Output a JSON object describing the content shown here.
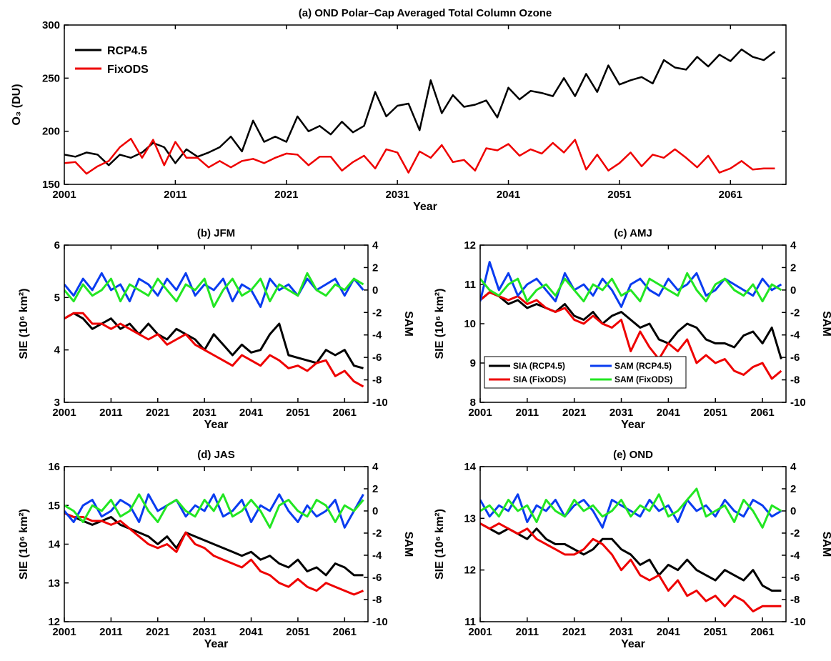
{
  "chart_data": [
    {
      "type": "line",
      "title": "(a) OND Polar–Cap Averaged Total Column Ozone",
      "xlabel": "Year",
      "ylabel": "O₃ (DU)",
      "legend": "upper left",
      "x": [
        2001,
        2002,
        2003,
        2004,
        2005,
        2006,
        2007,
        2008,
        2009,
        2010,
        2011,
        2012,
        2013,
        2014,
        2015,
        2016,
        2017,
        2018,
        2019,
        2020,
        2021,
        2022,
        2023,
        2024,
        2025,
        2026,
        2027,
        2028,
        2029,
        2030,
        2031,
        2032,
        2033,
        2034,
        2035,
        2036,
        2037,
        2038,
        2039,
        2040,
        2041,
        2042,
        2043,
        2044,
        2045,
        2046,
        2047,
        2048,
        2049,
        2050,
        2051,
        2052,
        2053,
        2054,
        2055,
        2056,
        2057,
        2058,
        2059,
        2060,
        2061,
        2062,
        2063,
        2064,
        2065
      ],
      "xlim": [
        2001,
        2066
      ],
      "xticks": [
        2001,
        2011,
        2021,
        2031,
        2041,
        2051,
        2061
      ],
      "ylim": [
        150,
        300
      ],
      "yticks": [
        150,
        200,
        250,
        300
      ],
      "series": [
        {
          "name": "RCP4.5",
          "color": "#000000",
          "values": [
            178,
            176,
            180,
            178,
            168,
            178,
            175,
            180,
            189,
            185,
            170,
            183,
            176,
            180,
            185,
            195,
            181,
            210,
            190,
            195,
            190,
            214,
            200,
            205,
            197,
            209,
            199,
            205,
            237,
            214,
            224,
            226,
            201,
            248,
            217,
            234,
            223,
            225,
            229,
            213,
            241,
            230,
            238,
            236,
            233,
            250,
            233,
            254,
            237,
            262,
            244,
            248,
            251,
            245,
            267,
            260,
            258,
            270,
            261,
            272,
            266,
            277,
            270,
            267,
            275
          ]
        },
        {
          "name": "FixODS",
          "color": "#ee0000",
          "values": [
            170,
            171,
            160,
            167,
            172,
            185,
            193,
            175,
            192,
            168,
            190,
            175,
            175,
            166,
            172,
            166,
            172,
            174,
            170,
            175,
            179,
            178,
            168,
            176,
            176,
            163,
            171,
            177,
            165,
            183,
            180,
            161,
            181,
            175,
            187,
            171,
            173,
            163,
            184,
            182,
            188,
            177,
            183,
            179,
            189,
            180,
            192,
            164,
            178,
            163,
            170,
            180,
            167,
            178,
            175,
            183,
            175,
            166,
            177,
            161,
            165,
            172,
            164,
            165,
            165
          ]
        }
      ]
    },
    {
      "type": "line",
      "title": "(b) JFM",
      "xlabel": "Year",
      "ylabel": "SIE (10⁶ km²)",
      "y2label": "SAM",
      "x": [
        2001,
        2003,
        2005,
        2007,
        2009,
        2011,
        2013,
        2015,
        2017,
        2019,
        2021,
        2023,
        2025,
        2027,
        2029,
        2031,
        2033,
        2035,
        2037,
        2039,
        2041,
        2043,
        2045,
        2047,
        2049,
        2051,
        2053,
        2055,
        2057,
        2059,
        2061,
        2063,
        2065
      ],
      "xlim": [
        2001,
        2066
      ],
      "xticks": [
        2001,
        2011,
        2021,
        2031,
        2041,
        2051,
        2061
      ],
      "ylim": [
        3,
        6
      ],
      "yticks": [
        3,
        4,
        5,
        6
      ],
      "y2lim": [
        -10,
        4
      ],
      "y2ticks": [
        -10,
        -8,
        -6,
        -4,
        -2,
        0,
        2,
        4
      ],
      "series": [
        {
          "color": "#000000",
          "values": [
            4.6,
            4.7,
            4.6,
            4.4,
            4.5,
            4.6,
            4.4,
            4.5,
            4.3,
            4.5,
            4.3,
            4.2,
            4.4,
            4.3,
            4.2,
            4.0,
            4.3,
            4.1,
            3.9,
            4.1,
            3.95,
            4.0,
            4.3,
            4.5,
            3.9,
            3.85,
            3.8,
            3.75,
            4.0,
            3.9,
            4.0,
            3.7,
            3.65
          ]
        },
        {
          "color": "#ee0000",
          "values": [
            4.6,
            4.7,
            4.7,
            4.5,
            4.5,
            4.4,
            4.5,
            4.4,
            4.3,
            4.2,
            4.3,
            4.1,
            4.2,
            4.3,
            4.1,
            4.0,
            3.9,
            3.8,
            3.7,
            3.9,
            3.8,
            3.7,
            3.9,
            3.8,
            3.65,
            3.7,
            3.6,
            3.75,
            3.8,
            3.5,
            3.6,
            3.4,
            3.3
          ]
        },
        {
          "color": "#0a3cf0",
          "axis": "y2",
          "values": [
            0.5,
            -0.5,
            1,
            0,
            1.5,
            0,
            0.5,
            -1,
            1,
            0.5,
            -0.5,
            1,
            0,
            1.5,
            -0.5,
            0.5,
            0,
            1,
            -1,
            0.5,
            0,
            -1.5,
            1,
            0,
            0.5,
            -0.5,
            1,
            0,
            0.5,
            1,
            -0.5,
            1,
            0
          ]
        },
        {
          "color": "#22e622",
          "axis": "y2",
          "values": [
            0,
            -1,
            0.5,
            -0.5,
            0,
            1,
            -1,
            0.5,
            0,
            -0.5,
            1,
            0,
            -1,
            0.5,
            0,
            1,
            -1.5,
            0,
            1,
            -0.5,
            0,
            1,
            -1,
            0.5,
            0,
            -0.5,
            1.5,
            0,
            -0.5,
            0.5,
            0,
            1,
            0.5
          ]
        }
      ]
    },
    {
      "type": "line",
      "title": "(c) AMJ",
      "xlabel": "Year",
      "ylabel": "SIE (10⁶ km²)",
      "y2label": "SAM",
      "legend": "lower left",
      "x": [
        2001,
        2003,
        2005,
        2007,
        2009,
        2011,
        2013,
        2015,
        2017,
        2019,
        2021,
        2023,
        2025,
        2027,
        2029,
        2031,
        2033,
        2035,
        2037,
        2039,
        2041,
        2043,
        2045,
        2047,
        2049,
        2051,
        2053,
        2055,
        2057,
        2059,
        2061,
        2063,
        2065
      ],
      "xlim": [
        2001,
        2066
      ],
      "xticks": [
        2001,
        2011,
        2021,
        2031,
        2041,
        2051,
        2061
      ],
      "ylim": [
        8,
        12
      ],
      "yticks": [
        8,
        9,
        10,
        11,
        12
      ],
      "y2lim": [
        -10,
        4
      ],
      "y2ticks": [
        -10,
        -8,
        -6,
        -4,
        -2,
        0,
        2,
        4
      ],
      "series": [
        {
          "name": "SIA (RCP4.5)",
          "color": "#000000",
          "values": [
            10.6,
            10.8,
            10.7,
            10.5,
            10.6,
            10.4,
            10.5,
            10.4,
            10.3,
            10.5,
            10.2,
            10.1,
            10.3,
            10.0,
            10.2,
            10.3,
            10.1,
            9.9,
            10.0,
            9.6,
            9.5,
            9.8,
            10.0,
            9.9,
            9.6,
            9.5,
            9.5,
            9.4,
            9.7,
            9.8,
            9.5,
            9.9,
            9.1
          ]
        },
        {
          "name": "SIA (FixODS)",
          "color": "#ee0000",
          "values": [
            10.6,
            10.8,
            10.7,
            10.6,
            10.7,
            10.5,
            10.6,
            10.4,
            10.3,
            10.4,
            10.1,
            10.0,
            10.2,
            10.0,
            9.9,
            10.1,
            9.3,
            9.8,
            9.4,
            9.1,
            9.5,
            9.3,
            9.6,
            9.0,
            9.2,
            9.0,
            9.1,
            8.8,
            8.7,
            8.9,
            9.0,
            8.6,
            8.8
          ]
        },
        {
          "name": "SAM (RCP4.5)",
          "color": "#0a3cf0",
          "axis": "y2",
          "values": [
            -1,
            2.5,
            0,
            1.5,
            -0.5,
            0.5,
            1,
            0,
            -1,
            1.5,
            0,
            0.5,
            -0.5,
            1,
            0,
            -1.5,
            0.5,
            1,
            0,
            -0.5,
            1,
            0,
            0.5,
            1.5,
            -0.5,
            0,
            1,
            0.5,
            0,
            -0.5,
            1,
            0,
            0.5
          ]
        },
        {
          "name": "SAM (FixODS)",
          "color": "#22e622",
          "axis": "y2",
          "values": [
            1,
            0,
            -0.5,
            0.5,
            1,
            -1,
            0,
            0.5,
            -0.5,
            1,
            0,
            -1,
            0.5,
            0,
            1,
            -0.5,
            0,
            -1,
            1,
            0.5,
            0,
            -0.5,
            1.5,
            0,
            -1,
            0.5,
            1,
            0,
            -0.5,
            0.5,
            -1,
            0.5,
            0
          ]
        }
      ]
    },
    {
      "type": "line",
      "title": "(d) JAS",
      "xlabel": "Year",
      "ylabel": "SIE (10⁶ km²)",
      "y2label": "SAM",
      "x": [
        2001,
        2003,
        2005,
        2007,
        2009,
        2011,
        2013,
        2015,
        2017,
        2019,
        2021,
        2023,
        2025,
        2027,
        2029,
        2031,
        2033,
        2035,
        2037,
        2039,
        2041,
        2043,
        2045,
        2047,
        2049,
        2051,
        2053,
        2055,
        2057,
        2059,
        2061,
        2063,
        2065
      ],
      "xlim": [
        2001,
        2066
      ],
      "xticks": [
        2001,
        2011,
        2021,
        2031,
        2041,
        2051,
        2061
      ],
      "ylim": [
        12,
        16
      ],
      "yticks": [
        12,
        13,
        14,
        15,
        16
      ],
      "y2lim": [
        -10,
        4
      ],
      "y2ticks": [
        -10,
        -8,
        -6,
        -4,
        -2,
        0,
        2,
        4
      ],
      "series": [
        {
          "color": "#000000",
          "values": [
            14.8,
            14.7,
            14.6,
            14.5,
            14.6,
            14.7,
            14.5,
            14.4,
            14.3,
            14.2,
            14.0,
            14.2,
            13.9,
            14.3,
            14.2,
            14.1,
            14.0,
            13.9,
            13.8,
            13.7,
            13.8,
            13.6,
            13.7,
            13.5,
            13.4,
            13.6,
            13.3,
            13.4,
            13.2,
            13.5,
            13.4,
            13.2,
            13.2
          ]
        },
        {
          "color": "#ee0000",
          "values": [
            14.8,
            14.7,
            14.7,
            14.6,
            14.6,
            14.5,
            14.6,
            14.4,
            14.2,
            14.0,
            13.9,
            14.0,
            13.8,
            14.3,
            14.0,
            13.9,
            13.7,
            13.6,
            13.5,
            13.4,
            13.6,
            13.3,
            13.2,
            13.0,
            12.9,
            13.1,
            12.9,
            12.8,
            13.0,
            12.9,
            12.8,
            12.7,
            12.8
          ]
        },
        {
          "color": "#0a3cf0",
          "axis": "y2",
          "values": [
            0,
            -1,
            0.5,
            1,
            -0.5,
            0,
            1,
            0.5,
            -1,
            1.5,
            0,
            0.5,
            1,
            -0.5,
            0.5,
            0,
            1.5,
            -0.5,
            0,
            1,
            -1,
            0.5,
            0,
            1.5,
            0,
            -1,
            0.5,
            -0.5,
            0,
            1,
            -1.5,
            0,
            1.5
          ]
        },
        {
          "color": "#22e622",
          "axis": "y2",
          "values": [
            0.5,
            0,
            -1,
            0.5,
            0,
            1,
            -0.5,
            0,
            1.5,
            0,
            -1,
            0.5,
            1,
            0,
            -0.5,
            1,
            0,
            1.5,
            -0.5,
            0,
            1,
            0,
            -1.5,
            0.5,
            1,
            0,
            -0.5,
            1,
            0.5,
            -1,
            0.5,
            0,
            1
          ]
        }
      ]
    },
    {
      "type": "line",
      "title": "(e) OND",
      "xlabel": "Year",
      "ylabel": "SIE (10⁶ km²)",
      "y2label": "SAM",
      "x": [
        2001,
        2003,
        2005,
        2007,
        2009,
        2011,
        2013,
        2015,
        2017,
        2019,
        2021,
        2023,
        2025,
        2027,
        2029,
        2031,
        2033,
        2035,
        2037,
        2039,
        2041,
        2043,
        2045,
        2047,
        2049,
        2051,
        2053,
        2055,
        2057,
        2059,
        2061,
        2063,
        2065
      ],
      "xlim": [
        2001,
        2066
      ],
      "xticks": [
        2001,
        2011,
        2021,
        2031,
        2041,
        2051,
        2061
      ],
      "ylim": [
        11,
        14
      ],
      "yticks": [
        11,
        12,
        13,
        14
      ],
      "y2lim": [
        -10,
        4
      ],
      "y2ticks": [
        -10,
        -8,
        -6,
        -4,
        -2,
        0,
        2,
        4
      ],
      "series": [
        {
          "color": "#000000",
          "values": [
            12.9,
            12.8,
            12.7,
            12.8,
            12.7,
            12.6,
            12.8,
            12.6,
            12.5,
            12.5,
            12.4,
            12.3,
            12.4,
            12.6,
            12.6,
            12.4,
            12.3,
            12.1,
            12.2,
            11.9,
            12.1,
            12.0,
            12.2,
            12.0,
            11.9,
            11.8,
            12.0,
            11.9,
            11.8,
            12.0,
            11.7,
            11.6,
            11.6
          ]
        },
        {
          "color": "#ee0000",
          "values": [
            12.9,
            12.8,
            12.9,
            12.8,
            12.7,
            12.8,
            12.6,
            12.5,
            12.4,
            12.3,
            12.3,
            12.4,
            12.6,
            12.5,
            12.3,
            12.0,
            12.2,
            11.9,
            11.8,
            11.9,
            11.6,
            11.8,
            11.5,
            11.6,
            11.4,
            11.5,
            11.3,
            11.5,
            11.4,
            11.2,
            11.3,
            11.3,
            11.3
          ]
        },
        {
          "color": "#0a3cf0",
          "axis": "y2",
          "values": [
            1,
            -0.5,
            0.5,
            0,
            1.5,
            -1,
            0.5,
            0,
            1,
            -0.5,
            0.5,
            1,
            0,
            -1.5,
            1,
            0.5,
            0,
            -0.5,
            1,
            0,
            0.5,
            -1,
            1,
            0,
            0.5,
            -0.5,
            1,
            0,
            -0.5,
            1,
            0.5,
            -0.5,
            0
          ]
        },
        {
          "color": "#22e622",
          "axis": "y2",
          "values": [
            0,
            0.5,
            -0.5,
            1,
            0,
            0.5,
            -1,
            1,
            0,
            -0.5,
            1,
            0,
            0.5,
            -0.5,
            0,
            1,
            -0.5,
            0.5,
            0,
            1.5,
            -0.5,
            0,
            1,
            2,
            -0.5,
            0,
            0.5,
            -1,
            1,
            0,
            -1.5,
            0.5,
            0
          ]
        }
      ]
    }
  ]
}
